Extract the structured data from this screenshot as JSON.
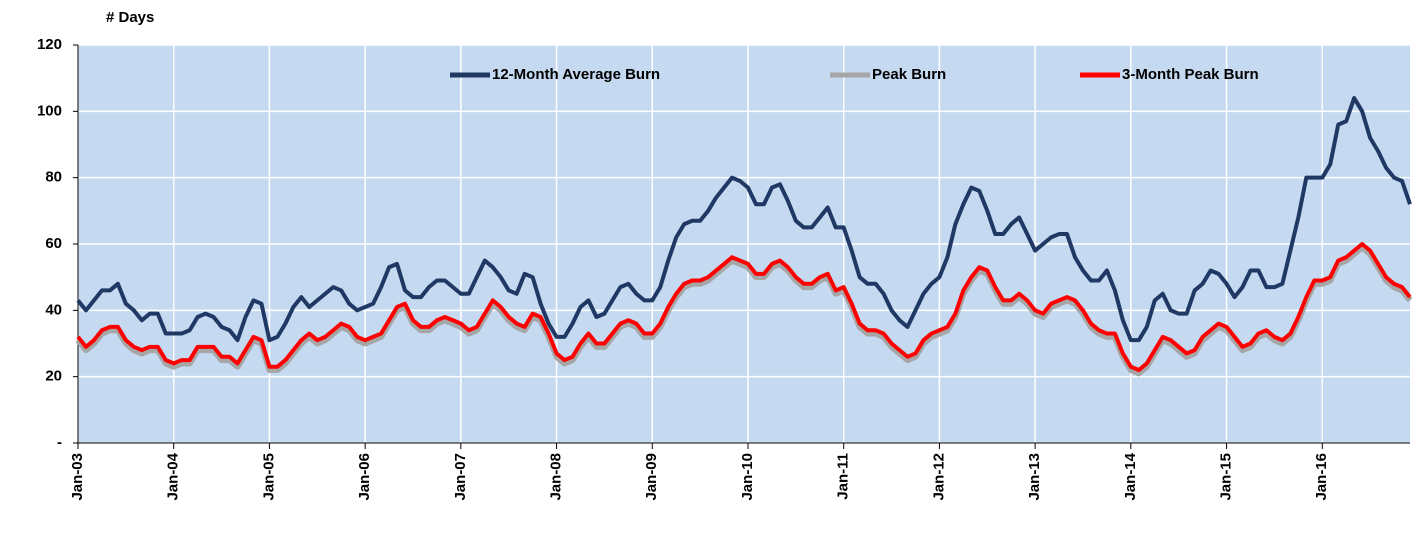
{
  "chart_data": {
    "type": "line",
    "ylabel": "# Days",
    "categories": [
      "Jan-03",
      null,
      null,
      null,
      null,
      null,
      null,
      null,
      null,
      null,
      null,
      null,
      "Jan-04",
      null,
      null,
      null,
      null,
      null,
      null,
      null,
      null,
      null,
      null,
      null,
      "Jan-05",
      null,
      null,
      null,
      null,
      null,
      null,
      null,
      null,
      null,
      null,
      null,
      "Jan-06",
      null,
      null,
      null,
      null,
      null,
      null,
      null,
      null,
      null,
      null,
      null,
      "Jan-07",
      null,
      null,
      null,
      null,
      null,
      null,
      null,
      null,
      null,
      null,
      null,
      "Jan-08",
      null,
      null,
      null,
      null,
      null,
      null,
      null,
      null,
      null,
      null,
      null,
      "Jan-09",
      null,
      null,
      null,
      null,
      null,
      null,
      null,
      null,
      null,
      null,
      null,
      "Jan-10",
      null,
      null,
      null,
      null,
      null,
      null,
      null,
      null,
      null,
      null,
      null,
      "Jan-11",
      null,
      null,
      null,
      null,
      null,
      null,
      null,
      null,
      null,
      null,
      null,
      "Jan-12",
      null,
      null,
      null,
      null,
      null,
      null,
      null,
      null,
      null,
      null,
      null,
      "Jan-13",
      null,
      null,
      null,
      null,
      null,
      null,
      null,
      null,
      null,
      null,
      null,
      "Jan-14",
      null,
      null,
      null,
      null,
      null,
      null,
      null,
      null,
      null,
      null,
      null,
      "Jan-15",
      null,
      null,
      null,
      null,
      null,
      null,
      null,
      null,
      null,
      null,
      null,
      "Jan-16",
      null,
      null,
      null,
      null,
      null,
      null,
      null,
      null,
      null,
      null,
      null
    ],
    "series": [
      {
        "name": "12-Month Average Burn",
        "color": "#1f3864",
        "values": [
          43,
          40,
          43,
          46,
          46,
          48,
          42,
          40,
          37,
          39,
          39,
          33,
          33,
          33,
          34,
          38,
          39,
          38,
          35,
          34,
          31,
          38,
          43,
          42,
          31,
          32,
          36,
          41,
          44,
          41,
          43,
          45,
          47,
          46,
          42,
          40,
          41,
          42,
          47,
          53,
          54,
          46,
          44,
          44,
          47,
          49,
          49,
          47,
          45,
          45,
          50,
          55,
          53,
          50,
          46,
          45,
          51,
          50,
          42,
          36,
          32,
          32,
          36,
          41,
          43,
          38,
          39,
          43,
          47,
          48,
          45,
          43,
          43,
          47,
          55,
          62,
          66,
          67,
          67,
          70,
          74,
          77,
          80,
          79,
          77,
          72,
          72,
          77,
          78,
          73,
          67,
          65,
          65,
          68,
          71,
          65,
          65,
          58,
          50,
          48,
          48,
          45,
          40,
          37,
          35,
          40,
          45,
          48,
          50,
          56,
          66,
          72,
          77,
          76,
          70,
          63,
          63,
          66,
          68,
          63,
          58,
          60,
          62,
          63,
          63,
          56,
          52,
          49,
          49,
          52,
          46,
          37,
          31,
          31,
          35,
          43,
          45,
          40,
          39,
          39,
          46,
          48,
          52,
          51,
          48,
          44,
          47,
          52,
          52,
          47,
          47,
          48,
          58,
          68,
          80,
          80,
          80,
          84,
          96,
          97,
          104,
          100,
          92,
          88,
          83,
          80,
          79,
          72
        ]
      },
      {
        "name": "Peak Burn",
        "color": "#a6a6a6",
        "values": [
          31,
          28,
          30,
          33,
          34,
          34,
          30,
          28,
          27,
          28,
          28,
          24,
          23,
          24,
          24,
          28,
          28,
          28,
          25,
          25,
          23,
          27,
          31,
          30,
          22,
          22,
          24,
          27,
          30,
          32,
          30,
          31,
          33,
          35,
          34,
          31,
          30,
          31,
          32,
          36,
          40,
          41,
          36,
          34,
          34,
          36,
          37,
          36,
          35,
          33,
          34,
          38,
          42,
          40,
          37,
          35,
          34,
          38,
          37,
          32,
          26,
          24,
          25,
          29,
          32,
          29,
          29,
          32,
          35,
          36,
          35,
          32,
          32,
          35,
          40,
          44,
          47,
          48,
          48,
          49,
          51,
          53,
          55,
          54,
          53,
          50,
          50,
          53,
          54,
          52,
          49,
          47,
          47,
          49,
          50,
          45,
          46,
          41,
          35,
          33,
          33,
          32,
          29,
          27,
          25,
          26,
          30,
          32,
          33,
          34,
          38,
          45,
          49,
          52,
          51,
          46,
          42,
          42,
          44,
          42,
          39,
          38,
          41,
          42,
          43,
          42,
          39,
          35,
          33,
          32,
          32,
          26,
          22,
          21,
          23,
          27,
          31,
          30,
          28,
          26,
          27,
          31,
          33,
          35,
          34,
          31,
          28,
          29,
          32,
          33,
          31,
          30,
          32,
          37,
          43,
          48,
          48,
          49,
          54,
          55,
          57,
          59,
          57,
          53,
          49,
          47,
          46,
          43
        ]
      },
      {
        "name": "3-Month Peak Burn",
        "color": "#ff0000",
        "values": [
          32,
          29,
          31,
          34,
          35,
          35,
          31,
          29,
          28,
          29,
          29,
          25,
          24,
          25,
          25,
          29,
          29,
          29,
          26,
          26,
          24,
          28,
          32,
          31,
          23,
          23,
          25,
          28,
          31,
          33,
          31,
          32,
          34,
          36,
          35,
          32,
          31,
          32,
          33,
          37,
          41,
          42,
          37,
          35,
          35,
          37,
          38,
          37,
          36,
          34,
          35,
          39,
          43,
          41,
          38,
          36,
          35,
          39,
          38,
          33,
          27,
          25,
          26,
          30,
          33,
          30,
          30,
          33,
          36,
          37,
          36,
          33,
          33,
          36,
          41,
          45,
          48,
          49,
          49,
          50,
          52,
          54,
          56,
          55,
          54,
          51,
          51,
          54,
          55,
          53,
          50,
          48,
          48,
          50,
          51,
          46,
          47,
          42,
          36,
          34,
          34,
          33,
          30,
          28,
          26,
          27,
          31,
          33,
          34,
          35,
          39,
          46,
          50,
          53,
          52,
          47,
          43,
          43,
          45,
          43,
          40,
          39,
          42,
          43,
          44,
          43,
          40,
          36,
          34,
          33,
          33,
          27,
          23,
          22,
          24,
          28,
          32,
          31,
          29,
          27,
          28,
          32,
          34,
          36,
          35,
          32,
          29,
          30,
          33,
          34,
          32,
          31,
          33,
          38,
          44,
          49,
          49,
          50,
          55,
          56,
          58,
          60,
          58,
          54,
          50,
          48,
          47,
          44
        ]
      }
    ],
    "ylim": [
      0,
      120
    ],
    "yticks": [
      {
        "value": 0,
        "label": "-"
      },
      20,
      40,
      60,
      80,
      100,
      120
    ],
    "grid": true,
    "legend": "top"
  }
}
